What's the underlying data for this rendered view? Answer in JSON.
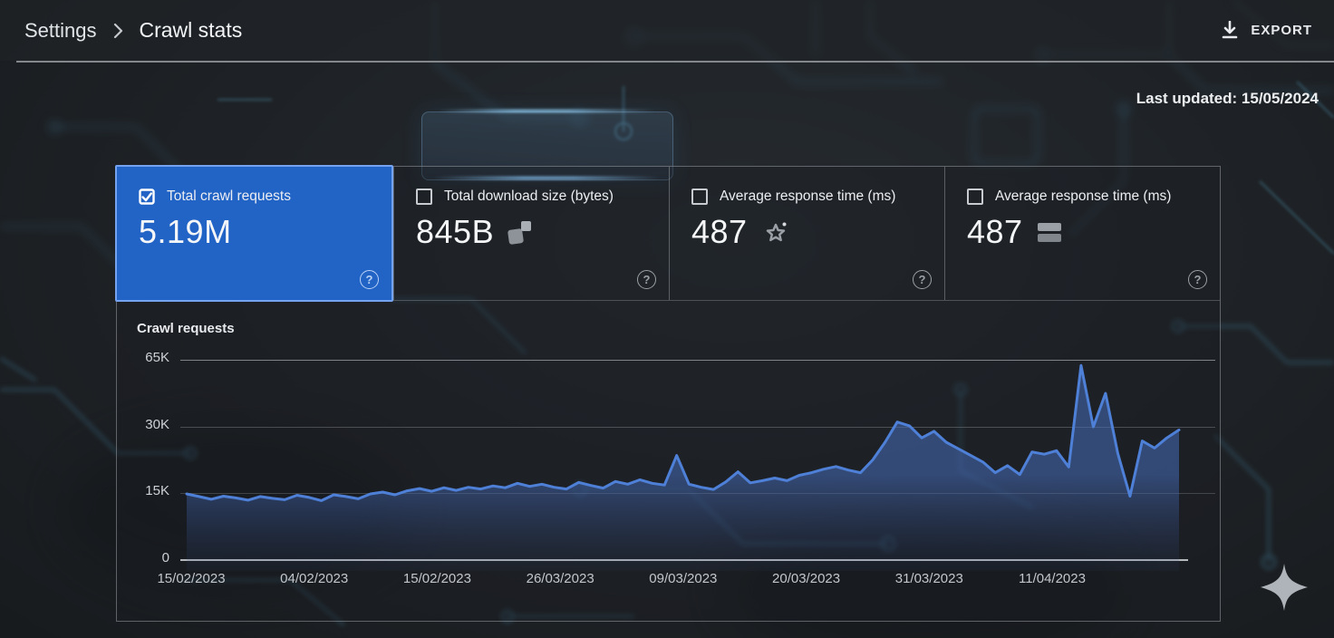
{
  "header": {
    "breadcrumb": {
      "parent": "Settings",
      "current": "Crawl stats"
    },
    "export_label": "EXPORT"
  },
  "meta": {
    "last_updated": "Last updated: 15/05/2024"
  },
  "cards": [
    {
      "label": "Total crawl requests",
      "value": "5.19M",
      "checked": true,
      "selected": true,
      "help": "?"
    },
    {
      "label": "Total download size (bytes)",
      "value": "845B",
      "checked": false,
      "selected": false,
      "icon": "overlapping-squares-icon",
      "help": "?"
    },
    {
      "label": "Average response time (ms)",
      "value": "487",
      "checked": false,
      "selected": false,
      "icon": "star-sparkle-icon",
      "help": "?"
    },
    {
      "label": "Average response time (ms)",
      "value": "487",
      "checked": false,
      "selected": false,
      "icon": "storage-stack-icon",
      "help": "?"
    }
  ],
  "icons": {
    "export": "download-arrow-icon",
    "breadcrumb_separator": "chevron-right-icon",
    "help": "question-mark-circle-icon",
    "decoration": "four-point-sparkle-icon"
  },
  "colors": {
    "selected_card_bg": "#2263c6",
    "selected_card_border": "#76a3f0",
    "chart_line": "#4e80d8",
    "chart_fill_top": "rgba(70,108,185,0.55)",
    "background": "#1e2226",
    "text": "#e8eaed"
  },
  "chart_data": {
    "type": "area",
    "title": "Crawl requests",
    "unit": "thousands of requests",
    "y_tick_labels": [
      "65K",
      "30K",
      "15K",
      "0"
    ],
    "y_axis_values": [
      0,
      15,
      30,
      65
    ],
    "axis_note": "ticks evenly spaced for values 0/15K/30K/65K (non-uniform scale), grid on, no legend",
    "x_ticks": [
      "15/02/2023",
      "04/02/2023",
      "15/02/2023",
      "26/03/2023",
      "09/03/2023",
      "20/03/2023",
      "31/03/2023",
      "11/04/2023"
    ],
    "values": [
      14.8,
      14.2,
      13.6,
      14.3,
      13.9,
      13.4,
      14.2,
      13.8,
      13.5,
      14.5,
      14.0,
      13.3,
      14.6,
      14.2,
      13.7,
      14.8,
      15.2,
      14.6,
      15.5,
      16.0,
      15.4,
      16.2,
      15.6,
      16.3,
      15.9,
      16.6,
      16.2,
      17.2,
      16.5,
      17.0,
      16.3,
      15.9,
      17.4,
      16.7,
      16.1,
      17.6,
      17.0,
      18.0,
      17.2,
      16.8,
      23.5,
      17.0,
      16.3,
      15.8,
      17.5,
      19.8,
      17.3,
      17.8,
      18.4,
      17.8,
      19.0,
      19.6,
      20.4,
      21.0,
      20.2,
      19.6,
      22.5,
      26.5,
      32.5,
      30.5,
      27.5,
      29.0,
      26.5,
      25.0,
      23.5,
      22.0,
      19.6,
      21.2,
      19.2,
      24.3,
      23.8,
      24.6,
      20.9,
      62.0,
      30.0,
      47.5,
      24.0,
      14.3,
      26.8,
      25.2,
      27.5,
      29.3
    ]
  }
}
